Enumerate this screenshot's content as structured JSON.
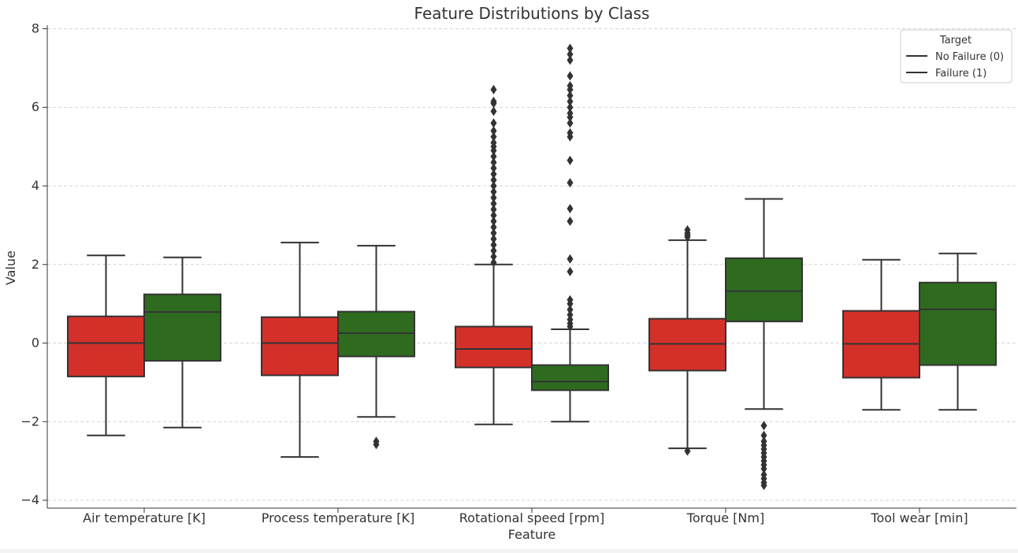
{
  "chart_data": {
    "type": "box",
    "title": "Feature Distributions by Class",
    "xlabel": "Feature",
    "ylabel": "Value",
    "ylim": [
      -4.2,
      8.05
    ],
    "yticks": [
      -4,
      -2,
      0,
      2,
      4,
      6,
      8
    ],
    "ytick_labels": [
      "−4",
      "−2",
      "0",
      "2",
      "4",
      "6",
      "8"
    ],
    "grid": "horizontal-dashed",
    "legend": {
      "title": "Target",
      "placement": "top-right",
      "entries": [
        "No Failure (0)",
        "Failure (1)"
      ]
    },
    "colors": {
      "No Failure (0)": "#d4302a",
      "Failure (1)": "#2e6b1f"
    },
    "categories": [
      "Air temperature [K]",
      "Process temperature [K]",
      "Rotational speed [rpm]",
      "Torque [Nm]",
      "Tool wear [min]"
    ],
    "series": [
      {
        "name": "No Failure (0)",
        "boxes": [
          {
            "whislo": -2.35,
            "q1": -0.85,
            "med": 0.0,
            "q3": 0.68,
            "whishi": 2.23,
            "fliers": []
          },
          {
            "whislo": -2.9,
            "q1": -0.82,
            "med": 0.0,
            "q3": 0.66,
            "whishi": 2.56,
            "fliers": []
          },
          {
            "whislo": -2.07,
            "q1": -0.62,
            "med": -0.15,
            "q3": 0.42,
            "whishi": 2.0,
            "fliers": [
              2.05,
              2.2,
              2.35,
              2.5,
              2.65,
              2.8,
              2.95,
              3.1,
              3.25,
              3.4,
              3.55,
              3.7,
              3.85,
              4.0,
              4.15,
              4.3,
              4.45,
              4.6,
              4.75,
              4.9,
              5.0,
              5.1,
              5.25,
              5.4,
              5.6,
              5.9,
              6.1,
              6.15,
              6.45
            ]
          },
          {
            "whislo": -2.68,
            "q1": -0.7,
            "med": -0.02,
            "q3": 0.62,
            "whishi": 2.62,
            "fliers": [
              -2.75,
              2.7,
              2.75,
              2.8,
              2.88
            ]
          },
          {
            "whislo": -1.7,
            "q1": -0.88,
            "med": -0.02,
            "q3": 0.82,
            "whishi": 2.12,
            "fliers": []
          }
        ]
      },
      {
        "name": "Failure (1)",
        "boxes": [
          {
            "whislo": -2.15,
            "q1": -0.45,
            "med": 0.79,
            "q3": 1.24,
            "whishi": 2.18,
            "fliers": []
          },
          {
            "whislo": -1.88,
            "q1": -0.34,
            "med": 0.25,
            "q3": 0.8,
            "whishi": 2.48,
            "fliers": [
              -2.5,
              -2.58
            ]
          },
          {
            "whislo": -2.0,
            "q1": -1.2,
            "med": -0.98,
            "q3": -0.56,
            "whishi": 0.35,
            "fliers": [
              0.42,
              0.5,
              0.6,
              0.72,
              0.85,
              1.0,
              1.1,
              1.82,
              2.14,
              3.1,
              3.42,
              4.08,
              4.65,
              5.25,
              5.35,
              5.6,
              5.75,
              5.85,
              6.0,
              6.15,
              6.3,
              6.45,
              6.55,
              6.8,
              7.2,
              7.35,
              7.5
            ]
          },
          {
            "whislo": -1.68,
            "q1": 0.55,
            "med": 1.32,
            "q3": 2.16,
            "whishi": 3.67,
            "fliers": [
              -2.1,
              -2.35,
              -2.5,
              -2.6,
              -2.7,
              -2.8,
              -2.9,
              -3.0,
              -3.1,
              -3.2,
              -3.35,
              -3.45,
              -3.55,
              -3.62
            ]
          },
          {
            "whislo": -1.7,
            "q1": -0.56,
            "med": 0.86,
            "q3": 1.54,
            "whishi": 2.28,
            "fliers": []
          }
        ]
      }
    ]
  }
}
